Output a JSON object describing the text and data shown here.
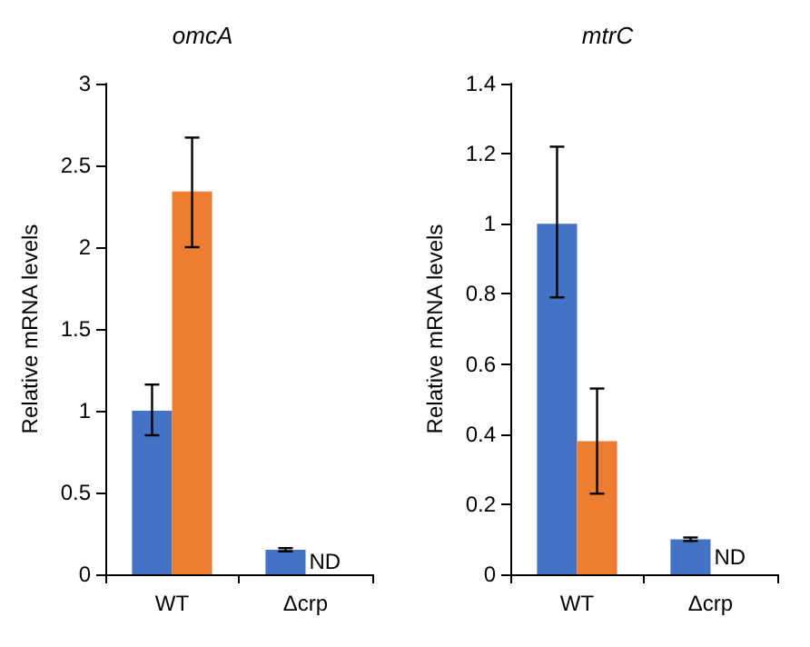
{
  "chart_data": [
    {
      "type": "bar",
      "title": "omcA",
      "ylabel": "Relative mRNA levels",
      "categories": [
        "WT",
        "Δcrp"
      ],
      "ylim": [
        0,
        3
      ],
      "yticks": [
        0,
        0.5,
        1,
        1.5,
        2,
        2.5,
        3
      ],
      "series": [
        {
          "color": "#4472c4",
          "values": [
            1.0,
            0.15
          ],
          "errors": [
            [
              0.85,
              1.16
            ],
            [
              0.14,
              0.16
            ]
          ]
        },
        {
          "color": "#ed7d31",
          "values": [
            2.34,
            null
          ],
          "errors": [
            [
              2.0,
              2.67
            ],
            null
          ]
        }
      ],
      "annotations": [
        {
          "text": "ND",
          "x": "Δcrp",
          "y": 0.08
        }
      ]
    },
    {
      "type": "bar",
      "title": "mtrC",
      "ylabel": "Relative mRNA levels",
      "categories": [
        "WT",
        "Δcrp"
      ],
      "ylim": [
        0,
        1.4
      ],
      "yticks": [
        0,
        0.2,
        0.4,
        0.6,
        0.8,
        1,
        1.2,
        1.4
      ],
      "series": [
        {
          "color": "#4472c4",
          "values": [
            1.0,
            0.1
          ],
          "errors": [
            [
              0.79,
              1.22
            ],
            [
              0.095,
              0.105
            ]
          ]
        },
        {
          "color": "#ed7d31",
          "values": [
            0.38,
            null
          ],
          "errors": [
            [
              0.23,
              0.53
            ],
            null
          ]
        }
      ],
      "annotations": [
        {
          "text": "ND",
          "x": "Δcrp",
          "y": 0.05
        }
      ]
    }
  ]
}
